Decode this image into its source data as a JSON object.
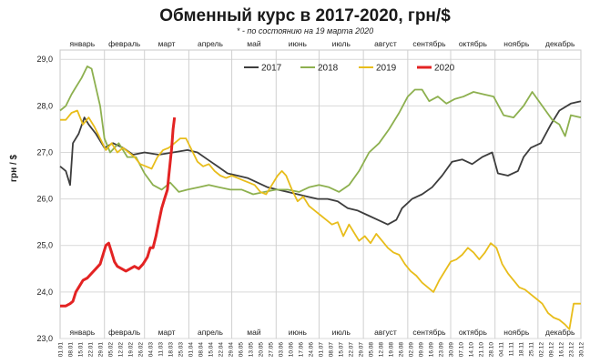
{
  "chart_data": {
    "type": "line",
    "title": "Обменный курс в 2017-2020, грн/$",
    "subtitle": "* - по состоянию на 19 марта 2020",
    "ylabel": "грн / $",
    "ylim": [
      23.0,
      29.2
    ],
    "yticks": [
      "23,0",
      "24,0",
      "25,0",
      "26,0",
      "27,0",
      "28,0",
      "29,0"
    ],
    "grid": true,
    "legend_position": "top-right",
    "months": [
      "январь",
      "февраль",
      "март",
      "апрель",
      "май",
      "июнь",
      "июль",
      "август",
      "сентябрь",
      "октябрь",
      "ноябрь",
      "декабрь"
    ],
    "x_tick_labels": [
      "01.01",
      "08.01",
      "15.01",
      "22.01",
      "29.01",
      "05.02",
      "12.02",
      "19.02",
      "26.02",
      "04.03",
      "11.03",
      "18.03",
      "25.03",
      "01.04",
      "08.04",
      "15.04",
      "22.04",
      "29.04",
      "06.05",
      "13.05",
      "20.05",
      "27.05",
      "03.06",
      "10.06",
      "17.06",
      "24.06",
      "01.07",
      "08.07",
      "15.07",
      "22.07",
      "29.07",
      "05.08",
      "12.08",
      "19.08",
      "26.08",
      "02.09",
      "09.09",
      "16.09",
      "23.09",
      "30.09",
      "07.10",
      "14.10",
      "21.10",
      "28.10",
      "04.11",
      "11.11",
      "18.11",
      "25.11",
      "02.12",
      "09.12",
      "16.12",
      "23.12",
      "30.12"
    ],
    "x_unit": "day of year (1 = 01.01)",
    "series": [
      {
        "name": "2017",
        "color": "#3d3d3d",
        "points": [
          [
            1,
            26.7
          ],
          [
            5,
            26.6
          ],
          [
            8,
            26.3
          ],
          [
            10,
            27.2
          ],
          [
            14,
            27.4
          ],
          [
            18,
            27.75
          ],
          [
            21,
            27.6
          ],
          [
            26,
            27.4
          ],
          [
            32,
            27.1
          ],
          [
            38,
            27.2
          ],
          [
            45,
            27.1
          ],
          [
            52,
            26.95
          ],
          [
            60,
            27.0
          ],
          [
            70,
            26.95
          ],
          [
            80,
            27.0
          ],
          [
            90,
            27.05
          ],
          [
            97,
            27.0
          ],
          [
            104,
            26.85
          ],
          [
            111,
            26.7
          ],
          [
            118,
            26.55
          ],
          [
            125,
            26.5
          ],
          [
            132,
            26.45
          ],
          [
            139,
            26.35
          ],
          [
            146,
            26.25
          ],
          [
            153,
            26.2
          ],
          [
            160,
            26.15
          ],
          [
            167,
            26.1
          ],
          [
            174,
            26.05
          ],
          [
            181,
            26.0
          ],
          [
            188,
            26.0
          ],
          [
            195,
            25.95
          ],
          [
            202,
            25.8
          ],
          [
            209,
            25.75
          ],
          [
            216,
            25.65
          ],
          [
            223,
            25.55
          ],
          [
            230,
            25.45
          ],
          [
            236,
            25.55
          ],
          [
            240,
            25.8
          ],
          [
            247,
            26.0
          ],
          [
            254,
            26.1
          ],
          [
            261,
            26.25
          ],
          [
            268,
            26.5
          ],
          [
            275,
            26.8
          ],
          [
            282,
            26.85
          ],
          [
            289,
            26.75
          ],
          [
            296,
            26.9
          ],
          [
            303,
            27.0
          ],
          [
            307,
            26.55
          ],
          [
            314,
            26.5
          ],
          [
            321,
            26.6
          ],
          [
            325,
            26.9
          ],
          [
            330,
            27.1
          ],
          [
            337,
            27.2
          ],
          [
            344,
            27.6
          ],
          [
            350,
            27.9
          ],
          [
            358,
            28.05
          ],
          [
            365,
            28.1
          ]
        ]
      },
      {
        "name": "2018",
        "color": "#8db04f",
        "points": [
          [
            1,
            27.9
          ],
          [
            5,
            28.0
          ],
          [
            9,
            28.25
          ],
          [
            12,
            28.4
          ],
          [
            16,
            28.6
          ],
          [
            20,
            28.85
          ],
          [
            23,
            28.8
          ],
          [
            26,
            28.4
          ],
          [
            29,
            28.0
          ],
          [
            32,
            27.3
          ],
          [
            36,
            27.0
          ],
          [
            42,
            27.2
          ],
          [
            48,
            26.9
          ],
          [
            54,
            26.9
          ],
          [
            60,
            26.55
          ],
          [
            66,
            26.3
          ],
          [
            72,
            26.2
          ],
          [
            78,
            26.35
          ],
          [
            84,
            26.15
          ],
          [
            90,
            26.2
          ],
          [
            98,
            26.25
          ],
          [
            105,
            26.3
          ],
          [
            112,
            26.25
          ],
          [
            120,
            26.2
          ],
          [
            128,
            26.2
          ],
          [
            136,
            26.1
          ],
          [
            144,
            26.15
          ],
          [
            152,
            26.2
          ],
          [
            160,
            26.2
          ],
          [
            168,
            26.15
          ],
          [
            175,
            26.25
          ],
          [
            182,
            26.3
          ],
          [
            189,
            26.25
          ],
          [
            196,
            26.15
          ],
          [
            203,
            26.3
          ],
          [
            210,
            26.6
          ],
          [
            217,
            27.0
          ],
          [
            224,
            27.2
          ],
          [
            231,
            27.5
          ],
          [
            238,
            27.85
          ],
          [
            244,
            28.2
          ],
          [
            249,
            28.35
          ],
          [
            254,
            28.35
          ],
          [
            259,
            28.1
          ],
          [
            265,
            28.2
          ],
          [
            271,
            28.05
          ],
          [
            277,
            28.15
          ],
          [
            283,
            28.2
          ],
          [
            290,
            28.3
          ],
          [
            297,
            28.25
          ],
          [
            304,
            28.2
          ],
          [
            311,
            27.8
          ],
          [
            318,
            27.75
          ],
          [
            325,
            28.0
          ],
          [
            331,
            28.3
          ],
          [
            338,
            28.0
          ],
          [
            345,
            27.7
          ],
          [
            350,
            27.6
          ],
          [
            354,
            27.35
          ],
          [
            358,
            27.8
          ],
          [
            365,
            27.75
          ]
        ]
      },
      {
        "name": "2019",
        "color": "#e8bd1b",
        "points": [
          [
            1,
            27.7
          ],
          [
            5,
            27.7
          ],
          [
            9,
            27.85
          ],
          [
            13,
            27.9
          ],
          [
            17,
            27.6
          ],
          [
            21,
            27.75
          ],
          [
            25,
            27.55
          ],
          [
            29,
            27.3
          ],
          [
            33,
            27.05
          ],
          [
            37,
            27.2
          ],
          [
            41,
            27.0
          ],
          [
            45,
            27.1
          ],
          [
            49,
            27.0
          ],
          [
            53,
            26.9
          ],
          [
            57,
            26.75
          ],
          [
            61,
            26.7
          ],
          [
            65,
            26.65
          ],
          [
            69,
            26.9
          ],
          [
            73,
            27.05
          ],
          [
            77,
            27.1
          ],
          [
            81,
            27.2
          ],
          [
            85,
            27.3
          ],
          [
            89,
            27.3
          ],
          [
            93,
            27.05
          ],
          [
            97,
            26.8
          ],
          [
            101,
            26.7
          ],
          [
            105,
            26.75
          ],
          [
            109,
            26.6
          ],
          [
            113,
            26.5
          ],
          [
            117,
            26.45
          ],
          [
            121,
            26.5
          ],
          [
            125,
            26.45
          ],
          [
            129,
            26.4
          ],
          [
            133,
            26.35
          ],
          [
            137,
            26.3
          ],
          [
            141,
            26.15
          ],
          [
            145,
            26.1
          ],
          [
            149,
            26.3
          ],
          [
            153,
            26.5
          ],
          [
            156,
            26.6
          ],
          [
            159,
            26.5
          ],
          [
            163,
            26.2
          ],
          [
            167,
            25.95
          ],
          [
            171,
            26.05
          ],
          [
            175,
            25.85
          ],
          [
            179,
            25.75
          ],
          [
            183,
            25.65
          ],
          [
            187,
            25.55
          ],
          [
            191,
            25.45
          ],
          [
            195,
            25.5
          ],
          [
            199,
            25.2
          ],
          [
            203,
            25.45
          ],
          [
            206,
            25.3
          ],
          [
            210,
            25.1
          ],
          [
            214,
            25.2
          ],
          [
            218,
            25.05
          ],
          [
            222,
            25.25
          ],
          [
            226,
            25.1
          ],
          [
            230,
            24.95
          ],
          [
            234,
            24.85
          ],
          [
            238,
            24.8
          ],
          [
            242,
            24.6
          ],
          [
            246,
            24.45
          ],
          [
            250,
            24.35
          ],
          [
            254,
            24.2
          ],
          [
            258,
            24.1
          ],
          [
            262,
            24.0
          ],
          [
            266,
            24.25
          ],
          [
            270,
            24.45
          ],
          [
            274,
            24.65
          ],
          [
            278,
            24.7
          ],
          [
            282,
            24.8
          ],
          [
            286,
            24.95
          ],
          [
            290,
            24.85
          ],
          [
            294,
            24.7
          ],
          [
            298,
            24.85
          ],
          [
            302,
            25.05
          ],
          [
            306,
            24.95
          ],
          [
            310,
            24.6
          ],
          [
            314,
            24.4
          ],
          [
            318,
            24.25
          ],
          [
            322,
            24.1
          ],
          [
            326,
            24.05
          ],
          [
            330,
            23.95
          ],
          [
            334,
            23.85
          ],
          [
            338,
            23.75
          ],
          [
            342,
            23.55
          ],
          [
            346,
            23.45
          ],
          [
            350,
            23.4
          ],
          [
            354,
            23.3
          ],
          [
            357,
            23.2
          ],
          [
            360,
            23.75
          ],
          [
            365,
            23.75
          ]
        ]
      },
      {
        "name": "2020",
        "color": "#e32323",
        "points": [
          [
            1,
            23.7
          ],
          [
            5,
            23.7
          ],
          [
            8,
            23.75
          ],
          [
            10,
            23.8
          ],
          [
            12,
            24.0
          ],
          [
            14,
            24.1
          ],
          [
            17,
            24.25
          ],
          [
            20,
            24.3
          ],
          [
            23,
            24.4
          ],
          [
            26,
            24.5
          ],
          [
            29,
            24.6
          ],
          [
            31,
            24.8
          ],
          [
            33,
            25.0
          ],
          [
            35,
            25.05
          ],
          [
            37,
            24.85
          ],
          [
            39,
            24.65
          ],
          [
            41,
            24.55
          ],
          [
            44,
            24.5
          ],
          [
            47,
            24.45
          ],
          [
            50,
            24.5
          ],
          [
            53,
            24.55
          ],
          [
            56,
            24.5
          ],
          [
            59,
            24.6
          ],
          [
            62,
            24.75
          ],
          [
            64,
            24.95
          ],
          [
            66,
            24.95
          ],
          [
            68,
            25.2
          ],
          [
            70,
            25.5
          ],
          [
            72,
            25.8
          ],
          [
            74,
            26.0
          ],
          [
            76,
            26.2
          ],
          [
            77,
            26.5
          ],
          [
            78,
            26.8
          ],
          [
            79,
            27.1
          ],
          [
            80,
            27.5
          ],
          [
            81,
            27.75
          ]
        ]
      }
    ]
  }
}
